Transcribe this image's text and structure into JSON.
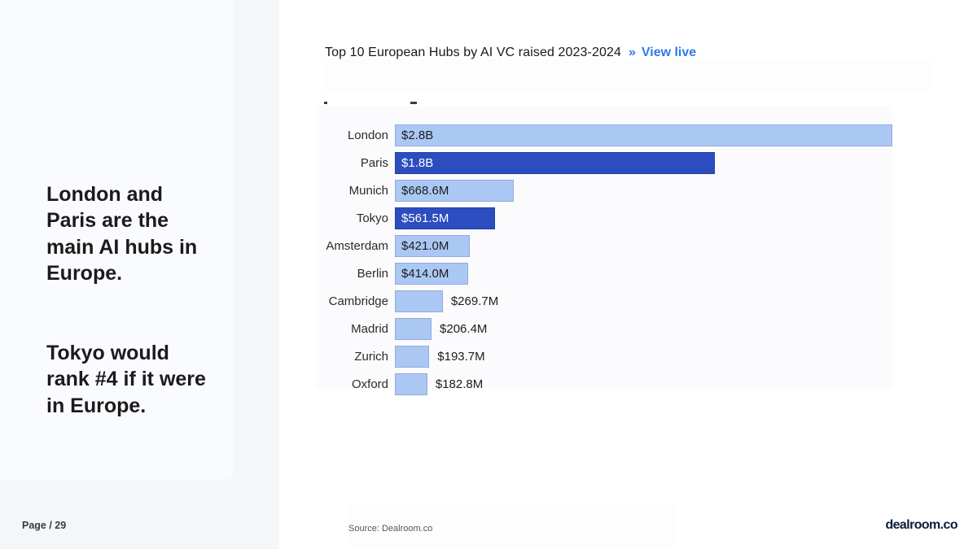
{
  "slide": {
    "headline_part1": "London and\nParis are the\nmain AI hubs in\nEurope.",
    "headline_part2": "Tokyo would\nrank #4 if it were\nin Europe.",
    "page_label": "Page / 29",
    "source_note": "Source: Dealroom.co",
    "brand": "dealroom.co"
  },
  "chart_header": {
    "title": "Top 10 European Hubs by AI VC raised 2023-2024",
    "link_arrow": "»",
    "link_label": "View live"
  },
  "colors": {
    "bar_light": "#abc8f4",
    "bar_dark": "#2c4dc0",
    "link_blue": "#3377f0",
    "left_panel_bg": "#f5f6fa",
    "brand_navy": "#0d1d3a"
  },
  "chart_data": {
    "type": "bar",
    "orientation": "horizontal",
    "title": "Top 10 European Hubs by AI VC raised 2023-2024",
    "categories": [
      "London",
      "Paris",
      "Munich",
      "Tokyo",
      "Amsterdam",
      "Berlin",
      "Cambridge",
      "Madrid",
      "Zurich",
      "Oxford"
    ],
    "values_musd": [
      2800,
      1800,
      668.6,
      561.5,
      421.0,
      414.0,
      269.7,
      206.4,
      193.7,
      182.8
    ],
    "value_labels": [
      "$2.8B",
      "$1.8B",
      "$668.6M",
      "$561.5M",
      "$421.0M",
      "$414.0M",
      "$269.7M",
      "$206.4M",
      "$193.7M",
      "$182.8M"
    ],
    "highlighted": [
      "Paris",
      "Tokyo"
    ],
    "xlabel": "",
    "ylabel": "",
    "xlim": [
      0,
      2800
    ],
    "grid": false,
    "legend": false
  }
}
